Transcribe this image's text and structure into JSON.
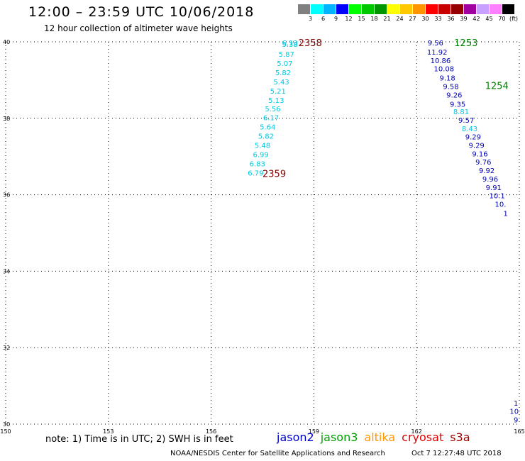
{
  "title": "12:00 – 23:59 UTC 10/06/2018",
  "subtitle": "12 hour collection of altimeter wave heights",
  "legend": {
    "unit": "(ft)",
    "labels": [
      "3",
      "6",
      "9",
      "12",
      "15",
      "18",
      "21",
      "24",
      "27",
      "30",
      "33",
      "36",
      "39",
      "42",
      "45",
      "70"
    ],
    "colors": [
      "#808080",
      "#00ffff",
      "#00b4ff",
      "#0000ff",
      "#00ff00",
      "#00c800",
      "#009600",
      "#ffff00",
      "#ffc800",
      "#ff9600",
      "#ff0000",
      "#c80000",
      "#960000",
      "#a000a0",
      "#c8a0ff",
      "#ff80ff",
      "#000000"
    ]
  },
  "axes": {
    "x_ticks": [
      "150",
      "153",
      "156",
      "159",
      "162",
      "165"
    ],
    "y_ticks": [
      "40",
      "38",
      "36",
      "34",
      "32",
      "30"
    ]
  },
  "tracks": [
    {
      "name": "track-left",
      "color": "#00c8e0",
      "points": [
        {
          "v": "6.13",
          "lon": 158.3,
          "lat": 39.98
        },
        {
          "v": "5.38",
          "lon": 158.3,
          "lat": 39.94
        },
        {
          "v": "5.87",
          "lon": 158.2,
          "lat": 39.68
        },
        {
          "v": "5.07",
          "lon": 158.15,
          "lat": 39.44
        },
        {
          "v": "5.82",
          "lon": 158.1,
          "lat": 39.2
        },
        {
          "v": "5.43",
          "lon": 158.05,
          "lat": 38.96
        },
        {
          "v": "5.21",
          "lon": 157.95,
          "lat": 38.72
        },
        {
          "v": "5.13",
          "lon": 157.9,
          "lat": 38.48
        },
        {
          "v": "5.56",
          "lon": 157.8,
          "lat": 38.26
        },
        {
          "v": "6.17",
          "lon": 157.75,
          "lat": 38.02
        },
        {
          "v": "5.64",
          "lon": 157.65,
          "lat": 37.78
        },
        {
          "v": "5.82",
          "lon": 157.6,
          "lat": 37.54
        },
        {
          "v": "5.48",
          "lon": 157.5,
          "lat": 37.3
        },
        {
          "v": "6.99",
          "lon": 157.45,
          "lat": 37.06
        },
        {
          "v": "6.83",
          "lon": 157.35,
          "lat": 36.82
        },
        {
          "v": "6.79",
          "lon": 157.3,
          "lat": 36.58
        }
      ]
    },
    {
      "name": "track-right-a",
      "color": "#0000b4",
      "points": [
        {
          "v": "9.56",
          "lon": 162.55,
          "lat": 39.98
        },
        {
          "v": "11.92",
          "lon": 162.6,
          "lat": 39.74
        },
        {
          "v": "10.86",
          "lon": 162.7,
          "lat": 39.52
        },
        {
          "v": "10.08",
          "lon": 162.8,
          "lat": 39.3
        },
        {
          "v": "9.18",
          "lon": 162.9,
          "lat": 39.06
        },
        {
          "v": "9.58",
          "lon": 163.0,
          "lat": 38.84
        },
        {
          "v": "9.26",
          "lon": 163.1,
          "lat": 38.62
        },
        {
          "v": "9.35",
          "lon": 163.2,
          "lat": 38.38
        }
      ]
    },
    {
      "name": "track-right-b",
      "color": "#00c8e0",
      "points": [
        {
          "v": "8.81",
          "lon": 163.3,
          "lat": 38.18
        },
        {
          "v": "8.43",
          "lon": 163.55,
          "lat": 37.74
        }
      ]
    },
    {
      "name": "track-right-c",
      "color": "#0000b4",
      "points": [
        {
          "v": "9.57",
          "lon": 163.45,
          "lat": 37.96
        },
        {
          "v": "9.29",
          "lon": 163.65,
          "lat": 37.52
        },
        {
          "v": "9.29",
          "lon": 163.75,
          "lat": 37.3
        },
        {
          "v": "9.16",
          "lon": 163.85,
          "lat": 37.08
        },
        {
          "v": "9.76",
          "lon": 163.95,
          "lat": 36.86
        },
        {
          "v": "9.92",
          "lon": 164.05,
          "lat": 36.64
        },
        {
          "v": "9.96",
          "lon": 164.15,
          "lat": 36.42
        },
        {
          "v": "9.91",
          "lon": 164.25,
          "lat": 36.2
        },
        {
          "v": "10.1",
          "lon": 164.35,
          "lat": 35.98
        },
        {
          "v": "10.",
          "lon": 164.45,
          "lat": 35.76
        },
        {
          "v": "1",
          "lon": 164.6,
          "lat": 35.52
        }
      ]
    },
    {
      "name": "track-bottom-right",
      "color": "#0000b4",
      "points": [
        {
          "v": "1",
          "lon": 164.9,
          "lat": 30.56
        },
        {
          "v": "10",
          "lon": 164.85,
          "lat": 30.34
        },
        {
          "v": "9",
          "lon": 164.9,
          "lat": 30.12
        }
      ]
    }
  ],
  "time_labels": [
    {
      "v": "2358",
      "lon": 158.55,
      "lat": 39.98,
      "color": "#800000"
    },
    {
      "v": "2359",
      "lon": 157.5,
      "lat": 36.56,
      "color": "#800000"
    },
    {
      "v": "1253",
      "lon": 163.1,
      "lat": 39.98,
      "color": "#008000"
    },
    {
      "v": "1254",
      "lon": 164.0,
      "lat": 38.86,
      "color": "#008000"
    }
  ],
  "note": "note: 1) Time is in UTC; 2) SWH is in feet",
  "satellites": [
    {
      "label": "jason2",
      "color": "#0000c8"
    },
    {
      "label": "jason3",
      "color": "#00a000"
    },
    {
      "label": "altika",
      "color": "#ff9600"
    },
    {
      "label": "cryosat",
      "color": "#e00000"
    },
    {
      "label": "s3a",
      "color": "#960000"
    }
  ],
  "footer": "NOAA/NESDIS Center for Satellite Applications and Research",
  "footer_timestamp": "Oct  7 12:27:48 UTC 2018"
}
